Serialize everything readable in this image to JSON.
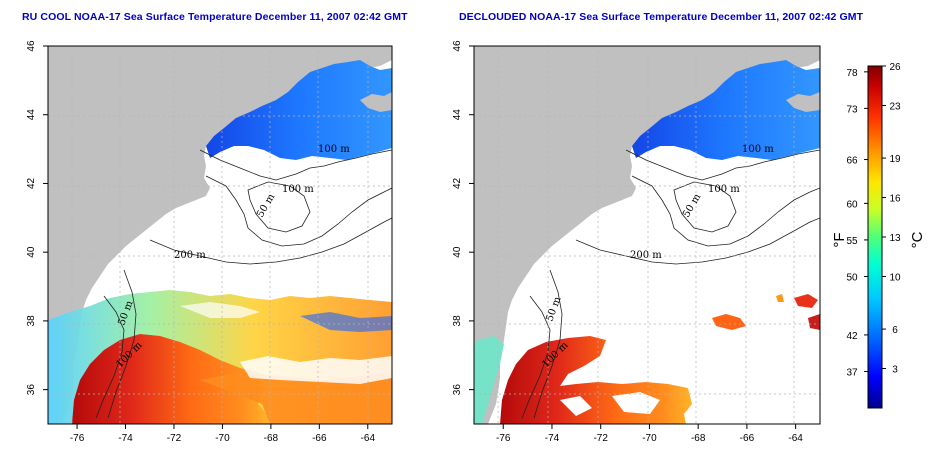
{
  "panels": {
    "left": {
      "title": "RU COOL NOAA-17 Sea Surface Temperature December 11, 2007 02:42 GMT"
    },
    "right": {
      "title": "DECLOUDED NOAA-17 Sea Surface Temperature December 11, 2007 02:42 GMT"
    }
  },
  "axes": {
    "x_ticks": [
      -76,
      -74,
      -72,
      -70,
      -68,
      -66,
      -64
    ],
    "y_ticks": [
      36,
      38,
      40,
      42,
      44,
      46
    ],
    "x_range": [
      -77.2,
      -63.0
    ],
    "y_range": [
      35.0,
      46.0
    ]
  },
  "contour_labels": {
    "left": [
      "100 m",
      "100 m",
      "50 m",
      "200 m",
      "50 m",
      "100 m"
    ],
    "right": [
      "100 m",
      "100 m",
      "50 m",
      "200 m",
      "50 m",
      "100 m"
    ]
  },
  "colorbar": {
    "fahrenheit_label": "°F",
    "celsius_label": "°C",
    "fahrenheit_ticks": [
      "78",
      "73",
      "66",
      "60",
      "55",
      "50",
      "42",
      "37"
    ],
    "celsius_ticks": [
      "26",
      "23",
      "19",
      "16",
      "13",
      "10",
      "6",
      "3"
    ],
    "fahrenheit_values": [
      78,
      73,
      66,
      60,
      55,
      50,
      42,
      37
    ],
    "celsius_values": [
      26,
      23,
      19,
      16,
      13,
      10,
      6,
      3
    ],
    "c_range": [
      0,
      26
    ],
    "gradient": [
      "#00008c",
      "#0000ff",
      "#0064ff",
      "#00c8ff",
      "#00ffd2",
      "#50ff7a",
      "#c8ff28",
      "#ffe600",
      "#ff9600",
      "#ff3200",
      "#c80000",
      "#820000"
    ]
  },
  "colors": {
    "land": "#c0c0c0",
    "water_blank": "#ffffff",
    "cold": "#1a66ff",
    "warm": "#e8321a",
    "hot": "#b40a0a"
  }
}
